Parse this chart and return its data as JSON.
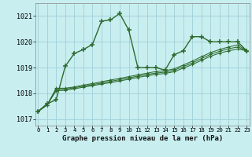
{
  "background_color": "#c8eef0",
  "grid_color": "#a0d0d8",
  "line_color": "#2d6a2d",
  "xlabel": "Graphe pression niveau de la mer (hPa)",
  "xlim": [
    -0.3,
    23.3
  ],
  "ylim": [
    1016.75,
    1021.5
  ],
  "yticks": [
    1017,
    1018,
    1019,
    1020,
    1021
  ],
  "xticks": [
    0,
    1,
    2,
    3,
    4,
    5,
    6,
    7,
    8,
    9,
    10,
    11,
    12,
    13,
    14,
    15,
    16,
    17,
    18,
    19,
    20,
    21,
    22,
    23
  ],
  "series1": [
    1017.3,
    1017.6,
    1017.75,
    1019.05,
    1019.55,
    1019.7,
    1019.9,
    1020.8,
    1020.85,
    1021.1,
    1020.45,
    1019.0,
    1019.0,
    1019.0,
    1018.9,
    1019.5,
    1019.65,
    1020.2,
    1020.2,
    1020.0,
    1020.0,
    1020.0,
    1020.0,
    1019.65
  ],
  "series2": [
    1017.3,
    1017.55,
    1018.2,
    1018.2,
    1018.25,
    1018.32,
    1018.38,
    1018.45,
    1018.52,
    1018.58,
    1018.65,
    1018.72,
    1018.78,
    1018.85,
    1018.88,
    1018.95,
    1019.1,
    1019.25,
    1019.42,
    1019.58,
    1019.7,
    1019.8,
    1019.88,
    1019.65
  ],
  "series3": [
    1017.3,
    1017.55,
    1018.1,
    1018.12,
    1018.18,
    1018.24,
    1018.3,
    1018.36,
    1018.42,
    1018.48,
    1018.55,
    1018.62,
    1018.68,
    1018.74,
    1018.77,
    1018.84,
    1018.98,
    1019.12,
    1019.28,
    1019.44,
    1019.56,
    1019.65,
    1019.72,
    1019.65
  ],
  "series4": [
    1017.3,
    1017.55,
    1018.15,
    1018.16,
    1018.22,
    1018.28,
    1018.34,
    1018.4,
    1018.47,
    1018.53,
    1018.6,
    1018.67,
    1018.73,
    1018.79,
    1018.82,
    1018.9,
    1019.04,
    1019.18,
    1019.35,
    1019.51,
    1019.63,
    1019.73,
    1019.8,
    1019.65
  ]
}
